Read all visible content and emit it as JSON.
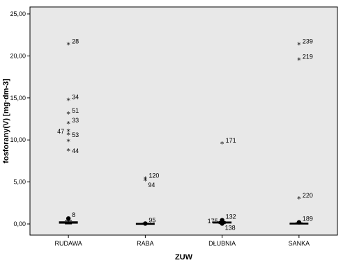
{
  "chart_data": {
    "type": "box",
    "xlabel": "ZUW",
    "ylabel": "fosforany(V) [mg·dm-3]",
    "ylim": [
      0,
      25
    ],
    "yticks": [
      "0,00",
      "5,00",
      "10,00",
      "15,00",
      "20,00",
      "25,00"
    ],
    "ytick_values": [
      0,
      5,
      10,
      15,
      20,
      25
    ],
    "categories": [
      "RUDAWA",
      "RABA",
      "DŁUBNIA",
      "SANKA"
    ],
    "boxes": [
      {
        "category": "RUDAWA",
        "min": 0.0,
        "q1": 0.08,
        "median": 0.17,
        "q3": 0.27,
        "max": 0.4
      },
      {
        "category": "RABA",
        "min": 0.0,
        "q1": 0.02,
        "median": 0.04,
        "q3": 0.07,
        "max": 0.1
      },
      {
        "category": "DŁUBNIA",
        "min": 0.03,
        "q1": 0.1,
        "median": 0.16,
        "q3": 0.25,
        "max": 0.3
      },
      {
        "category": "SANKA",
        "min": 0.0,
        "q1": 0.03,
        "median": 0.06,
        "q3": 0.1,
        "max": 0.15
      }
    ],
    "outliers": [
      {
        "category": "RUDAWA",
        "label": "8",
        "value": 0.65,
        "kind": "dot"
      },
      {
        "category": "RUDAWA",
        "label": "28",
        "value": 21.3,
        "kind": "star"
      },
      {
        "category": "RUDAWA",
        "label": "34",
        "value": 14.7,
        "kind": "star"
      },
      {
        "category": "RUDAWA",
        "label": "51",
        "value": 13.1,
        "kind": "star"
      },
      {
        "category": "RUDAWA",
        "label": "33",
        "value": 11.9,
        "kind": "star"
      },
      {
        "category": "RUDAWA",
        "label": "47",
        "value": 11.0,
        "kind": "star"
      },
      {
        "category": "RUDAWA",
        "label": "53",
        "value": 10.6,
        "kind": "star"
      },
      {
        "category": "RUDAWA",
        "label": "44",
        "value": 8.7,
        "kind": "star"
      },
      {
        "category": "RUDAWA",
        "label": "",
        "value": 9.8,
        "kind": "star"
      },
      {
        "category": "RABA",
        "label": "95",
        "value": 0.05,
        "kind": "dot"
      },
      {
        "category": "RABA",
        "label": "120",
        "value": 5.35,
        "kind": "star"
      },
      {
        "category": "RABA",
        "label": "94",
        "value": 5.15,
        "kind": "star"
      },
      {
        "category": "DŁUBNIA",
        "label": "175",
        "value": 0.35,
        "kind": "dot"
      },
      {
        "category": "DŁUBNIA",
        "label": "132",
        "value": 0.45,
        "kind": "dot"
      },
      {
        "category": "DŁUBNIA",
        "label": "138",
        "value": 0.05,
        "kind": "dot"
      },
      {
        "category": "DŁUBNIA",
        "label": "171",
        "value": 9.5,
        "kind": "star"
      },
      {
        "category": "SANKA",
        "label": "189",
        "value": 0.2,
        "kind": "dot"
      },
      {
        "category": "SANKA",
        "label": "220",
        "value": 3.0,
        "kind": "star"
      },
      {
        "category": "SANKA",
        "label": "219",
        "value": 19.5,
        "kind": "star"
      },
      {
        "category": "SANKA",
        "label": "239",
        "value": 21.3,
        "kind": "star"
      }
    ],
    "grid": false,
    "plot_background": "#e8e8e8",
    "plot_border": "#000000",
    "mark_color": "#000000"
  }
}
